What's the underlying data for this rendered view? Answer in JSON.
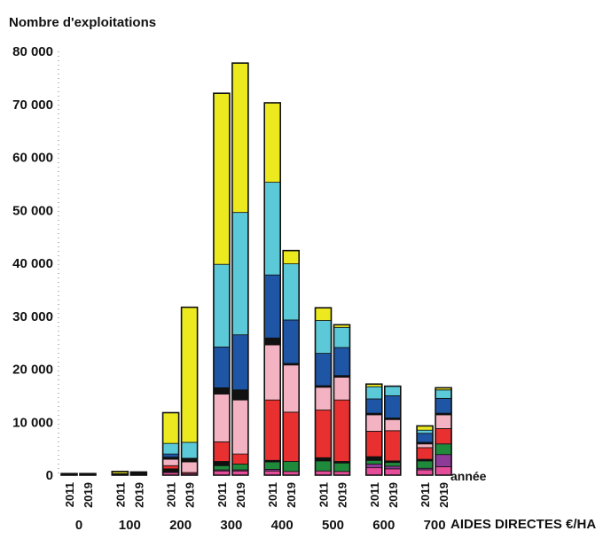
{
  "chart_data": {
    "type": "bar",
    "stacked": true,
    "ylabel": "Nombre d'exploitations",
    "xlabel": "AIDES DIRECTES €/HA",
    "year_axis_label": "année",
    "ylim": [
      0,
      80000
    ],
    "yticks": [
      "0",
      "10 000",
      "20 000",
      "30 000",
      "40 000",
      "50 000",
      "60 000",
      "70 000",
      "80 000"
    ],
    "ytick_values": [
      0,
      10000,
      20000,
      30000,
      40000,
      50000,
      60000,
      70000,
      80000
    ],
    "grid": false,
    "legend": "none",
    "groups": [
      "0",
      "100",
      "200",
      "300",
      "400",
      "500",
      "600",
      "700"
    ],
    "years": [
      "2011",
      "2019"
    ],
    "segment_colors": [
      "#e54d9a",
      "#8e3a99",
      "#f2e52b",
      "#1f8a3c",
      "#111111",
      "#e83030",
      "#f4b3c2",
      "#111111",
      "#1f55a5",
      "#5bc9d8",
      "#ecea1e"
    ],
    "bars": [
      {
        "group": "0",
        "year": "2011",
        "segments": [
          0,
          0,
          0,
          0,
          300,
          0,
          0,
          0,
          0,
          0,
          0
        ]
      },
      {
        "group": "0",
        "year": "2019",
        "segments": [
          0,
          0,
          0,
          0,
          300,
          0,
          0,
          0,
          0,
          0,
          0
        ]
      },
      {
        "group": "100",
        "year": "2011",
        "segments": [
          0,
          0,
          0,
          0,
          300,
          0,
          0,
          0,
          0,
          0,
          400
        ]
      },
      {
        "group": "100",
        "year": "2019",
        "segments": [
          0,
          0,
          0,
          0,
          600,
          0,
          0,
          0,
          0,
          0,
          0
        ]
      },
      {
        "group": "200",
        "year": "2011",
        "segments": [
          500,
          0,
          0,
          0,
          700,
          600,
          1200,
          400,
          600,
          2000,
          5800
        ]
      },
      {
        "group": "200",
        "year": "2019",
        "segments": [
          300,
          0,
          0,
          0,
          0,
          200,
          2000,
          700,
          0,
          3000,
          25500
        ]
      },
      {
        "group": "300",
        "year": "2011",
        "segments": [
          800,
          200,
          0,
          800,
          800,
          3700,
          9000,
          1200,
          7700,
          15600,
          32300
        ]
      },
      {
        "group": "300",
        "year": "2019",
        "segments": [
          800,
          200,
          0,
          1100,
          0,
          1900,
          10200,
          1900,
          10400,
          23100,
          28200
        ]
      },
      {
        "group": "400",
        "year": "2011",
        "segments": [
          800,
          300,
          0,
          1400,
          300,
          11400,
          10400,
          1300,
          11900,
          17500,
          15000
        ]
      },
      {
        "group": "400",
        "year": "2019",
        "segments": [
          700,
          0,
          0,
          1900,
          0,
          9300,
          8900,
          300,
          8200,
          10600,
          2500
        ]
      },
      {
        "group": "500",
        "year": "2011",
        "segments": [
          800,
          0,
          0,
          1900,
          600,
          9000,
          4300,
          300,
          6100,
          6200,
          2400
        ]
      },
      {
        "group": "500",
        "year": "2019",
        "segments": [
          700,
          0,
          0,
          1600,
          300,
          11600,
          4300,
          300,
          5300,
          3800,
          500
        ]
      },
      {
        "group": "600",
        "year": "2011",
        "segments": [
          1400,
          700,
          0,
          700,
          700,
          4800,
          3100,
          300,
          2700,
          2300,
          500
        ]
      },
      {
        "group": "600",
        "year": "2019",
        "segments": [
          1200,
          500,
          0,
          700,
          300,
          5700,
          2100,
          300,
          4200,
          1800,
          0
        ]
      },
      {
        "group": "700",
        "year": "2011",
        "segments": [
          1000,
          300,
          0,
          1400,
          300,
          2200,
          700,
          300,
          1700,
          600,
          800
        ]
      },
      {
        "group": "700",
        "year": "2019",
        "segments": [
          1600,
          2300,
          0,
          2000,
          0,
          2900,
          2600,
          300,
          2800,
          1600,
          400
        ]
      }
    ]
  }
}
